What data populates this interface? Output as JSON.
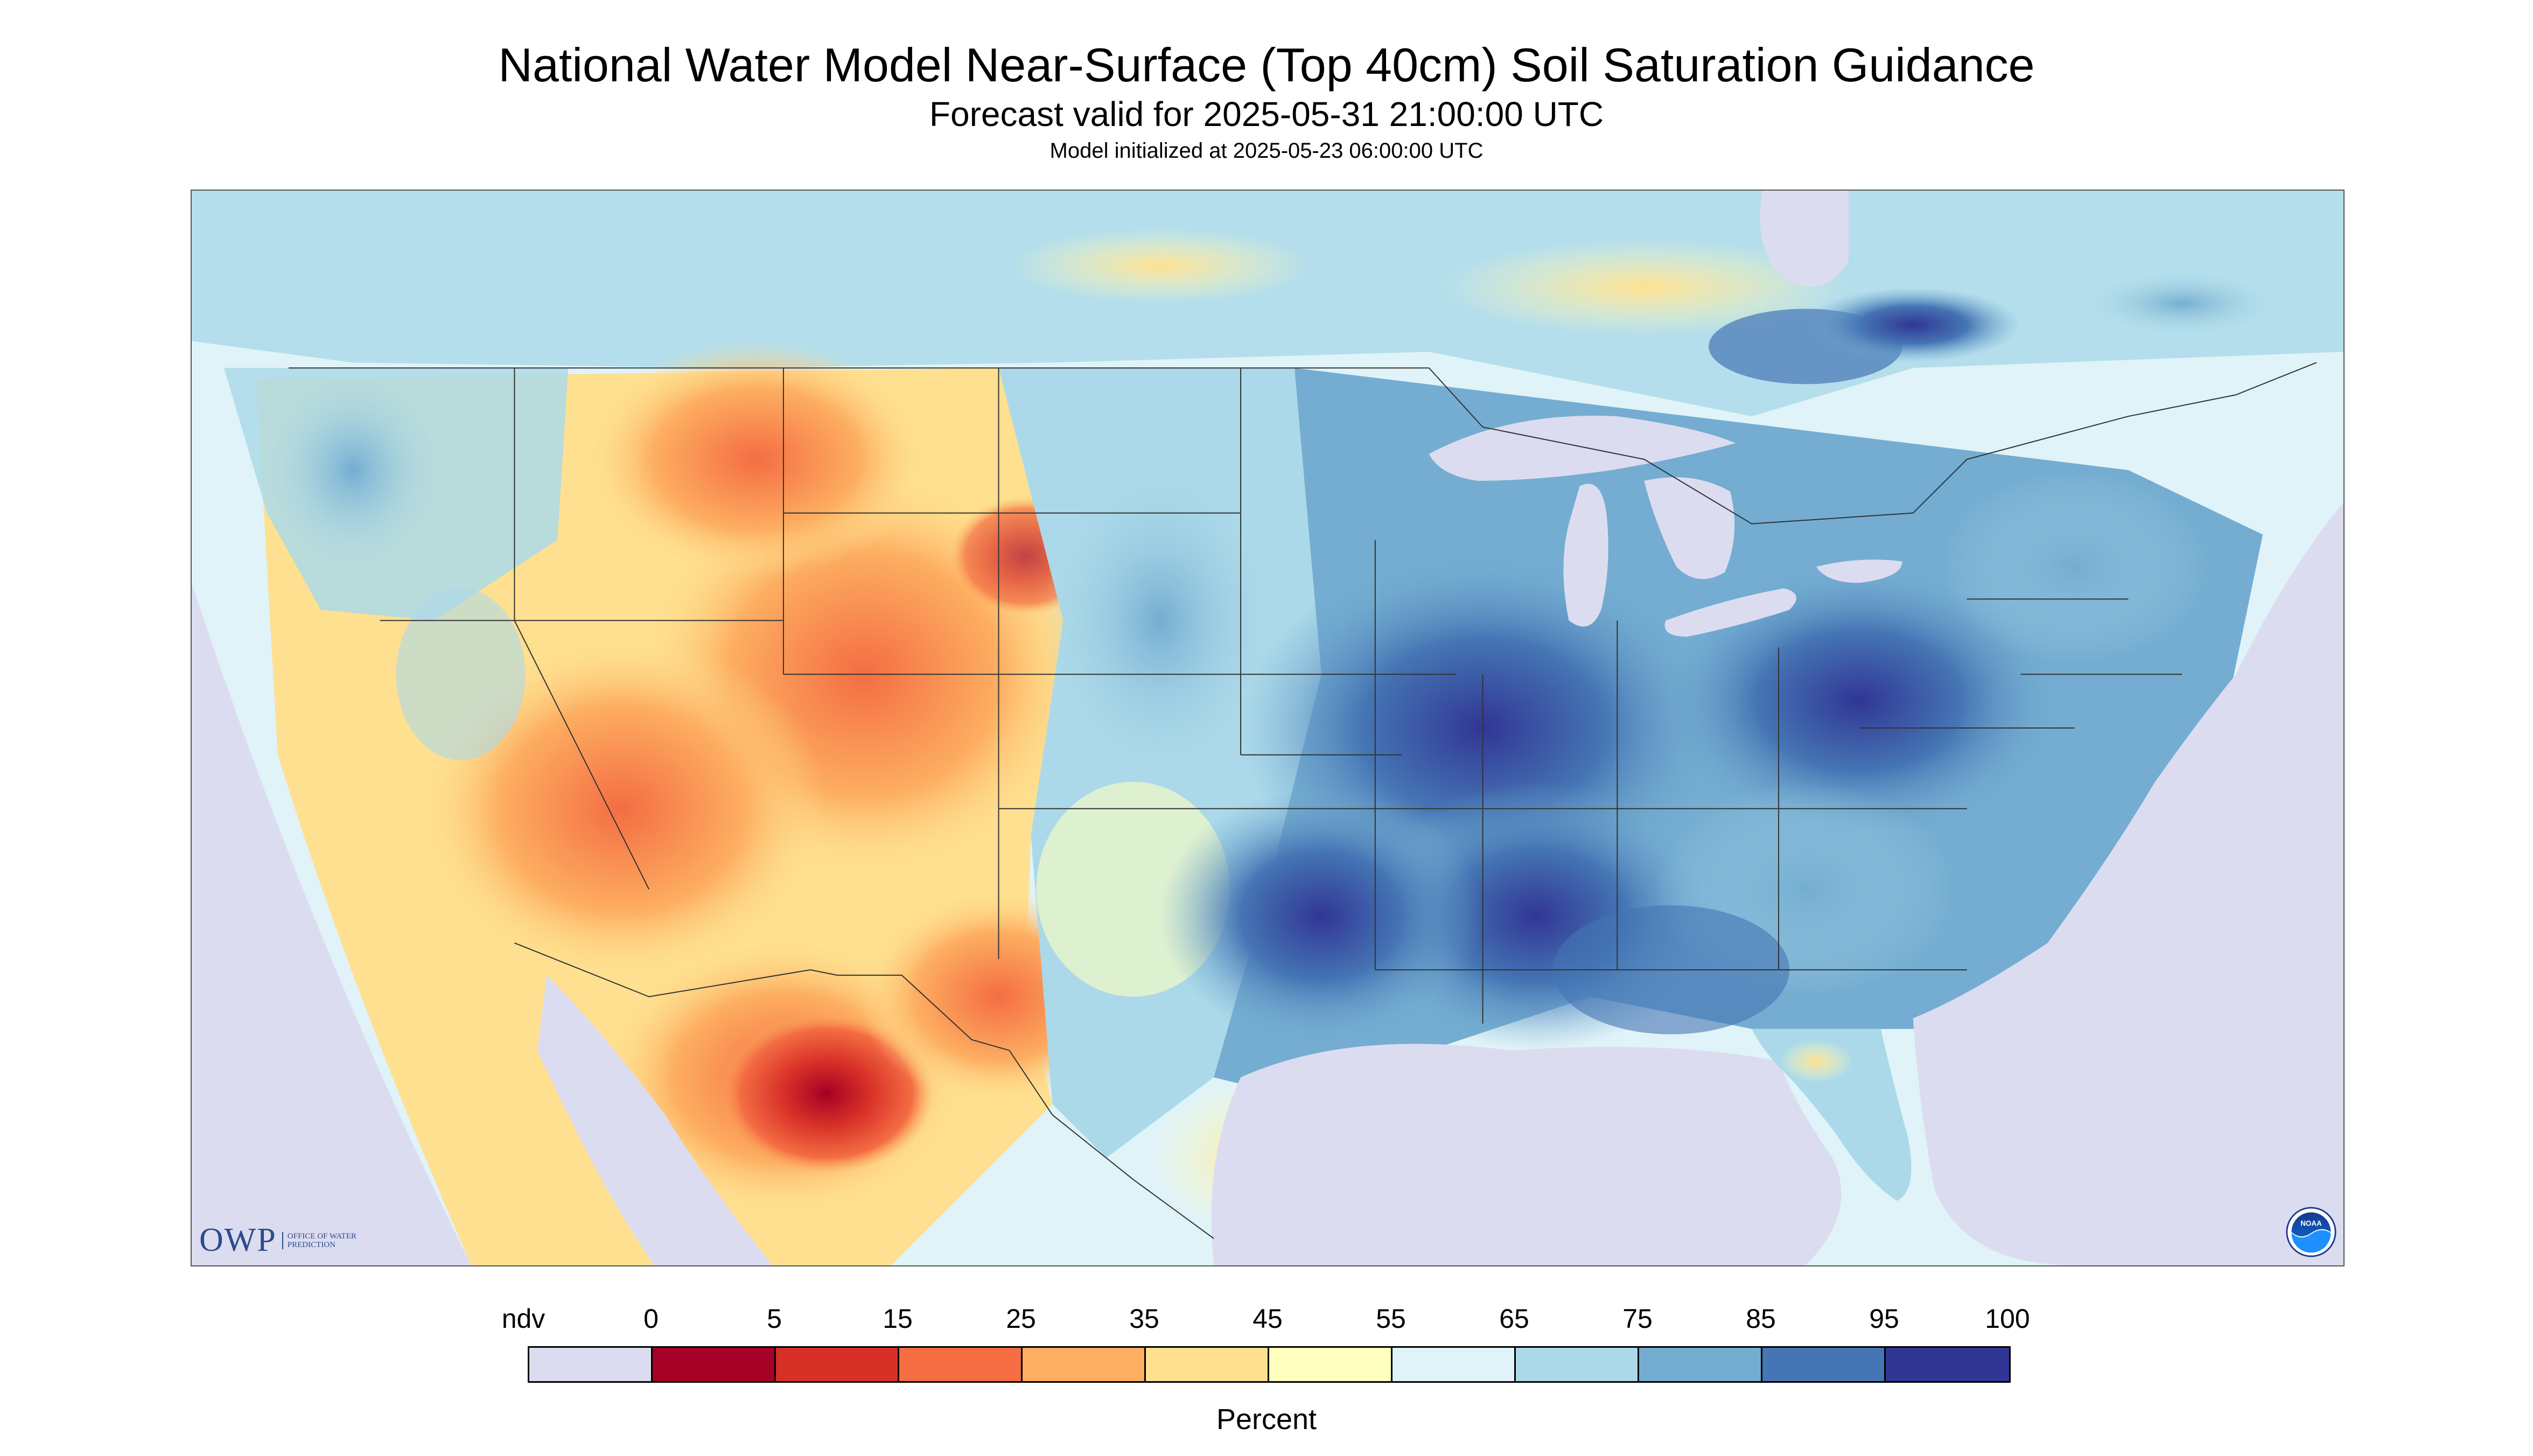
{
  "title": "National Water Model Near-Surface (Top 40cm) Soil Saturation Guidance",
  "subtitle": "Forecast valid for 2025-05-31 21:00:00 UTC",
  "model_init": "Model initialized at 2025-05-23 06:00:00 UTC",
  "logo_owp": {
    "abbr": "OWP",
    "full": "OFFICE OF WATER PREDICTION"
  },
  "logo_noaa": "NOAA",
  "colorbar": {
    "unit": "Percent",
    "labels": [
      "ndv",
      "0",
      "5",
      "15",
      "25",
      "35",
      "45",
      "55",
      "65",
      "75",
      "85",
      "95",
      "100"
    ],
    "colors": [
      "#dcdcf0",
      "#a50026",
      "#d73027",
      "#f46d43",
      "#fdae61",
      "#fee090",
      "#ffffbf",
      "#e0f3f8",
      "#abd9e9",
      "#74add1",
      "#4575b4",
      "#313695"
    ]
  },
  "map": {
    "ocean_color": "#dcdcf0",
    "nodata_color": "#dcdcf0",
    "border_color": "#333333"
  }
}
